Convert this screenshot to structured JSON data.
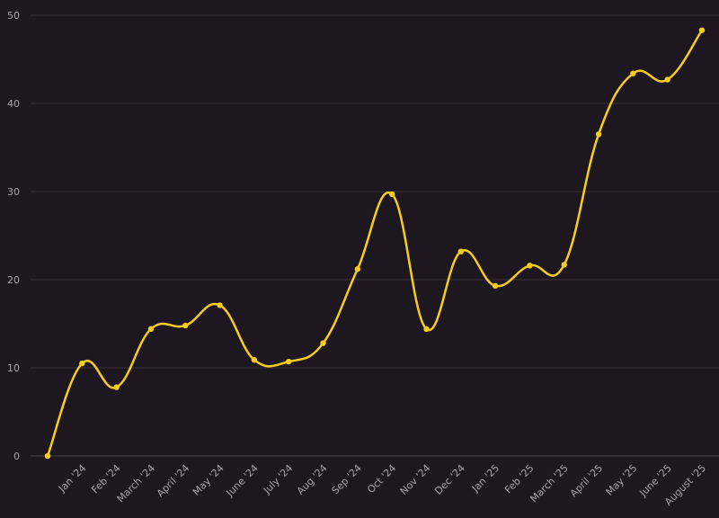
{
  "chart_data": {
    "type": "line",
    "title": "",
    "xlabel": "",
    "ylabel": "",
    "ylim": [
      0,
      50
    ],
    "yticks": [
      0,
      10,
      20,
      30,
      40,
      50
    ],
    "grid": true,
    "smooth": true,
    "categories": [
      "",
      "Jan '24",
      "Feb '24",
      "March '24",
      "April '24",
      "May '24",
      "June '24",
      "July '24",
      "Aug '24",
      "Sep '24",
      "Oct '24",
      "Nov '24",
      "Dec '24",
      "Jan '25",
      "Feb '25",
      "March '25",
      "April '25",
      "May '25",
      "June '25",
      "August '25"
    ],
    "series": [
      {
        "color": "#f6cd1a",
        "values": [
          0,
          10.5,
          7.8,
          14.4,
          14.8,
          17.1,
          10.9,
          10.7,
          12.8,
          21.2,
          29.7,
          14.4,
          23.2,
          19.3,
          21.6,
          21.7,
          36.5,
          43.4,
          42.7,
          48.3
        ]
      }
    ]
  },
  "colors": {
    "background": "#1e1720",
    "line": "#f6cd1a",
    "grid": "#3a333d",
    "text": "#a8a3aa"
  }
}
